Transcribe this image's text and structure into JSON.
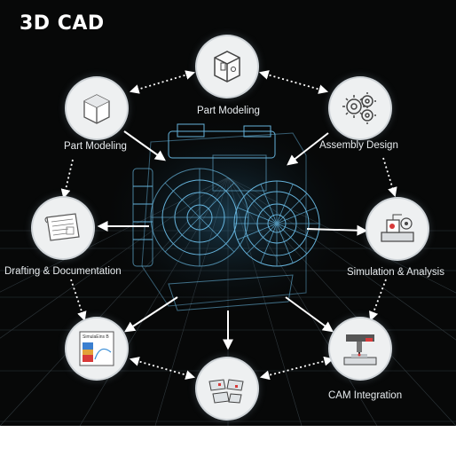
{
  "title": "3D CAD",
  "nodes": {
    "top": {
      "label": "Part Modeling",
      "icon": "box-part-icon"
    },
    "upper_left": {
      "label": "Part Modeling",
      "icon": "wireframe-cube-icon"
    },
    "upper_right": {
      "label": "Assembly Design",
      "icon": "gears-icon"
    },
    "left": {
      "label": "Drafting & Documentation",
      "icon": "blueprint-sheet-icon"
    },
    "right": {
      "label": "Simulation & Analysis",
      "icon": "simulation-icon"
    },
    "lower_left": {
      "label": "",
      "icon": "analysis-chart-icon",
      "text": "SimulaEins B"
    },
    "bottom": {
      "label": "",
      "icon": "assembly-parts-icon"
    },
    "lower_right": {
      "label": "CAM Integration",
      "icon": "cnc-machine-icon"
    }
  },
  "colors": {
    "background": "#070808",
    "grid": "#5a6b75",
    "wireframe": "#6fc4f0",
    "node_fill": "#eef0f1",
    "text": "#e8ecef"
  }
}
